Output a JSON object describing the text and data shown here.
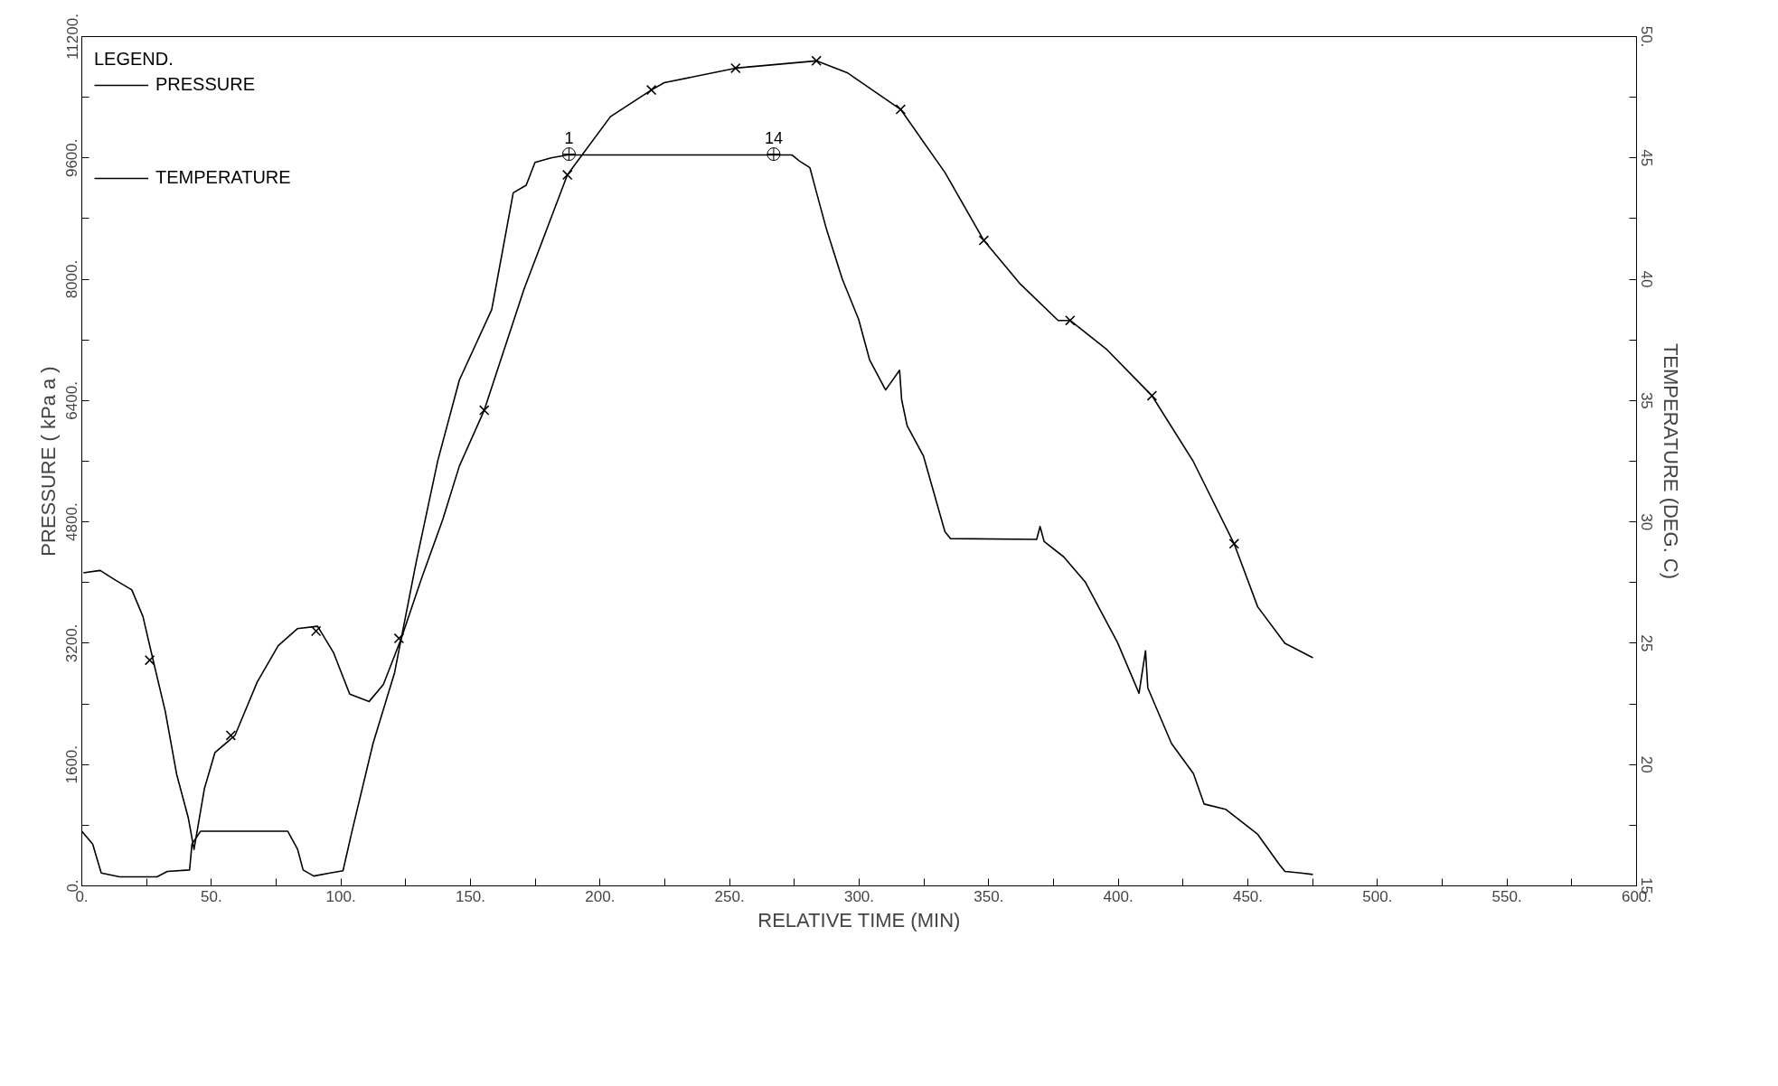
{
  "chart_data": {
    "type": "line",
    "legend_title": "LEGEND.",
    "legend": "top left",
    "xlabel": "RELATIVE TIME (MIN)",
    "ylabel": "PRESSURE ( kPa a )",
    "y2label": "TEMPERATURE (DEG. C)",
    "xlim": [
      0,
      600
    ],
    "ylim": [
      0,
      11200
    ],
    "y2lim": [
      15,
      50
    ],
    "xticks": [
      {
        "value": 0,
        "label": "0."
      },
      {
        "value": 25,
        "label": null
      },
      {
        "value": 50,
        "label": "50."
      },
      {
        "value": 75,
        "label": null
      },
      {
        "value": 100,
        "label": "100."
      },
      {
        "value": 125,
        "label": null
      },
      {
        "value": 150,
        "label": "150."
      },
      {
        "value": 175,
        "label": null
      },
      {
        "value": 200,
        "label": "200."
      },
      {
        "value": 225,
        "label": null
      },
      {
        "value": 250,
        "label": "250."
      },
      {
        "value": 275,
        "label": null
      },
      {
        "value": 300,
        "label": "300."
      },
      {
        "value": 325,
        "label": null
      },
      {
        "value": 350,
        "label": "350."
      },
      {
        "value": 375,
        "label": null
      },
      {
        "value": 400,
        "label": "400."
      },
      {
        "value": 425,
        "label": null
      },
      {
        "value": 450,
        "label": "450."
      },
      {
        "value": 475,
        "label": null
      },
      {
        "value": 500,
        "label": "500."
      },
      {
        "value": 525,
        "label": null
      },
      {
        "value": 550,
        "label": "550."
      },
      {
        "value": 575,
        "label": null
      },
      {
        "value": 600,
        "label": "600."
      }
    ],
    "yticks": [
      {
        "value": 0,
        "label": "0."
      },
      {
        "value": 800,
        "label": null
      },
      {
        "value": 1600,
        "label": "1600."
      },
      {
        "value": 2400,
        "label": null
      },
      {
        "value": 3200,
        "label": "3200."
      },
      {
        "value": 4000,
        "label": null
      },
      {
        "value": 4800,
        "label": "4800."
      },
      {
        "value": 5600,
        "label": null
      },
      {
        "value": 6400,
        "label": "6400."
      },
      {
        "value": 7200,
        "label": null
      },
      {
        "value": 8000,
        "label": "8000."
      },
      {
        "value": 8800,
        "label": null
      },
      {
        "value": 9600,
        "label": "9600."
      },
      {
        "value": 10400,
        "label": null
      },
      {
        "value": 11200,
        "label": "11200."
      }
    ],
    "y2ticks": [
      15,
      {
        "value": 17.5,
        "label": null
      },
      20,
      {
        "value": 22.5,
        "label": null
      },
      25,
      {
        "value": 27.5,
        "label": null
      },
      30,
      {
        "value": 32.5,
        "label": null
      },
      35,
      {
        "value": 37.5,
        "label": null
      },
      40,
      {
        "value": 42.5,
        "label": null
      },
      45,
      {
        "value": 47.5,
        "label": null
      },
      {
        "value": 50,
        "label": "50."
      }
    ],
    "series": [
      {
        "name": "PRESSURE",
        "color": "#000000",
        "x": [
          0,
          4.2,
          7.5,
          14.6,
          29,
          33,
          41.6,
          42.5,
          45.8,
          79.5,
          83.3,
          85.4,
          89.5,
          95.8,
          100.8,
          104,
          112.4,
          120.7,
          129.1,
          137.4,
          145.7,
          158.2,
          166.5,
          171.5,
          174.9,
          181.1,
          187.4,
          274,
          276.9,
          281,
          283.1,
          287.3,
          293.5,
          299.8,
          304,
          310.2,
          315.6,
          316.4,
          318.5,
          324.8,
          333.1,
          335.2,
          368.5,
          369.8,
          371.4,
          378.9,
          387.2,
          399.7,
          408,
          410.5,
          411.4,
          420.5,
          429,
          433.1,
          441.4,
          453.8,
          462.2,
          464.3,
          470.5,
          475.1
        ],
        "values": [
          720,
          550,
          170,
          120,
          120,
          190,
          210,
          550,
          720,
          720,
          480,
          210,
          130,
          170,
          200,
          680,
          1880,
          2810,
          4280,
          5610,
          6670,
          7600,
          9140,
          9240,
          9540,
          9600,
          9640,
          9640,
          9560,
          9470,
          9200,
          8670,
          8000,
          7470,
          6940,
          6540,
          6800,
          6410,
          6070,
          5670,
          4670,
          4580,
          4570,
          4740,
          4540,
          4340,
          4010,
          3210,
          2540,
          3100,
          2610,
          1880,
          1480,
          1080,
          1010,
          680,
          280,
          190,
          170,
          150
        ]
      },
      {
        "name": "TEMPERATURE",
        "axis": "y2",
        "color": "#000000",
        "x": [
          0.6,
          7.1,
          13,
          19.3,
          23.6,
          27.3,
          32.2,
          36.6,
          41.1,
          43.3,
          47.3,
          51.4,
          59.1,
          67.7,
          75.8,
          83.2,
          91,
          97.2,
          103.4,
          110.9,
          116.4,
          123.3,
          131.2,
          139.3,
          145.7,
          155.3,
          170.7,
          187.4,
          204,
          219.8,
          224.8,
          252.3,
          283.5,
          295.6,
          316,
          333.1,
          348.1,
          362.2,
          376.8,
          381.4,
          395.6,
          413,
          428.9,
          444.7,
          453.8,
          464.3,
          475.1
        ],
        "values": [
          27.9,
          28,
          27.6,
          27.2,
          26.1,
          24.4,
          22.2,
          19.6,
          17.8,
          16.5,
          19,
          20.5,
          21.2,
          23.4,
          24.9,
          25.6,
          25.7,
          24.6,
          22.9,
          22.6,
          23.3,
          25.2,
          27.7,
          30.1,
          32.3,
          34.6,
          39.6,
          44.3,
          46.7,
          47.8,
          48.1,
          48.7,
          49,
          48.5,
          47,
          44.4,
          41.6,
          39.8,
          38.3,
          38.3,
          37.1,
          35.2,
          32.5,
          29.1,
          26.5,
          25,
          24.4
        ]
      },
      {
        "type": "scatter",
        "axis": "y2",
        "marker": "cross",
        "color": "#000000",
        "x": [
          26.2,
          57.5,
          90.4,
          122.4,
          155.3,
          187.4,
          219.8,
          252.3,
          283.5,
          316,
          348.1,
          381.4,
          413,
          444.7
        ],
        "values": [
          24.3,
          21.2,
          25.5,
          25.2,
          34.6,
          44.3,
          47.8,
          48.7,
          49,
          47,
          41.6,
          38.3,
          35.2,
          29.1
        ]
      }
    ],
    "annotations": [
      {
        "text": "1",
        "x": 188,
        "y": 9650
      },
      {
        "text": "14",
        "x": 267,
        "y": 9650
      }
    ]
  }
}
